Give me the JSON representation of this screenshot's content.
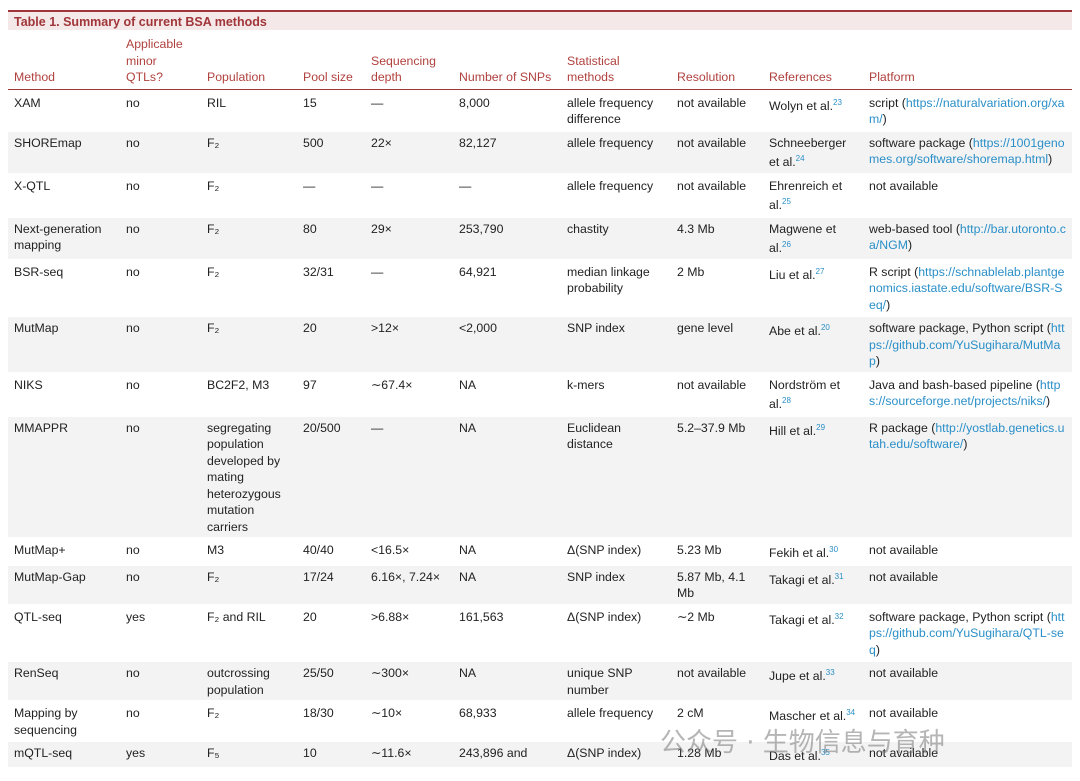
{
  "title": "Table 1. Summary of current BSA methods",
  "header": [
    "Method",
    "Applicable minor QTLs?",
    "Population",
    "Pool size",
    "Sequencing depth",
    "Number of SNPs",
    "Statistical methods",
    "Resolution",
    "References",
    "Platform"
  ],
  "rows": [
    {
      "method": "XAM",
      "minor": "no",
      "population": "RIL",
      "pool": "15",
      "depth": "—",
      "snps": "8,000",
      "stat": "allele frequency difference",
      "resolution": "not available",
      "ref_name": "Wolyn et al.",
      "ref_num": "23",
      "platform": [
        {
          "text": "script ("
        },
        {
          "link": "https://naturalvariation.org/xam/"
        },
        {
          "text": ")"
        }
      ]
    },
    {
      "method": "SHOREmap",
      "minor": "no",
      "population": "F₂",
      "pool": "500",
      "depth": "22×",
      "snps": "82,127",
      "stat": "allele frequency",
      "resolution": "not available",
      "ref_name": "Schneeberger et al.",
      "ref_num": "24",
      "platform": [
        {
          "text": "software package ("
        },
        {
          "link": "https://1001genomes.org/software/shoremap.html"
        },
        {
          "text": ")"
        }
      ]
    },
    {
      "method": "X-QTL",
      "minor": "no",
      "population": "F₂",
      "pool": "—",
      "depth": "—",
      "snps": "—",
      "stat": "allele frequency",
      "resolution": "not available",
      "ref_name": "Ehrenreich et al.",
      "ref_num": "25",
      "platform": [
        {
          "text": "not available"
        }
      ]
    },
    {
      "method": "Next-generation mapping",
      "minor": "no",
      "population": "F₂",
      "pool": "80",
      "depth": "29×",
      "snps": "253,790",
      "stat": "chastity",
      "resolution": "4.3 Mb",
      "ref_name": "Magwene et al.",
      "ref_num": "26",
      "platform": [
        {
          "text": "web-based tool ("
        },
        {
          "link": "http://bar.utoronto.ca/NGM"
        },
        {
          "text": ")"
        }
      ]
    },
    {
      "method": "BSR-seq",
      "minor": "no",
      "population": "F₂",
      "pool": "32/31",
      "depth": "—",
      "snps": "64,921",
      "stat": "median linkage probability",
      "resolution": "2 Mb",
      "ref_name": "Liu et al.",
      "ref_num": "27",
      "platform": [
        {
          "text": "R script ("
        },
        {
          "link": "https://schnablelab.plantgenomics.iastate.edu/software/BSR-Seq/"
        },
        {
          "text": ")"
        }
      ]
    },
    {
      "method": "MutMap",
      "minor": "no",
      "population": "F₂",
      "pool": "20",
      "depth": ">12×",
      "snps": "<2,000",
      "stat": "SNP index",
      "resolution": "gene level",
      "ref_name": "Abe et al.",
      "ref_num": "20",
      "platform": [
        {
          "text": "software package, Python script ("
        },
        {
          "link": "https://github.com/YuSugihara/MutMap"
        },
        {
          "text": ")"
        }
      ]
    },
    {
      "method": "NIKS",
      "minor": "no",
      "population": "BC2F2, M3",
      "pool": "97",
      "depth": "∼67.4×",
      "snps": "NA",
      "stat": "k-mers",
      "resolution": "not available",
      "ref_name": "Nordström et al.",
      "ref_num": "28",
      "platform": [
        {
          "text": "Java and bash-based pipeline ("
        },
        {
          "link": "https://sourceforge.net/projects/niks/"
        },
        {
          "text": ")"
        }
      ]
    },
    {
      "method": "MMAPPR",
      "minor": "no",
      "population": "segregating population developed by mating heterozygous mutation carriers",
      "pool": "20/500",
      "depth": "—",
      "snps": "NA",
      "stat": "Euclidean distance",
      "resolution": "5.2–37.9 Mb",
      "ref_name": "Hill et al.",
      "ref_num": "29",
      "platform": [
        {
          "text": "R package ("
        },
        {
          "link": "http://yostlab.genetics.utah.edu/software/"
        },
        {
          "text": ")"
        }
      ]
    },
    {
      "method": "MutMap+",
      "minor": "no",
      "population": "M3",
      "pool": "40/40",
      "depth": "<16.5×",
      "snps": "NA",
      "stat": "Δ(SNP index)",
      "resolution": "5.23 Mb",
      "ref_name": "Fekih et al.",
      "ref_num": "30",
      "platform": [
        {
          "text": "not available"
        }
      ]
    },
    {
      "method": "MutMap-Gap",
      "minor": "no",
      "population": "F₂",
      "pool": "17/24",
      "depth": "6.16×, 7.24×",
      "snps": "NA",
      "stat": "SNP index",
      "resolution": "5.87 Mb, 4.1 Mb",
      "ref_name": "Takagi et al.",
      "ref_num": "31",
      "platform": [
        {
          "text": "not available"
        }
      ]
    },
    {
      "method": "QTL-seq",
      "minor": "yes",
      "population": "F₂ and RIL",
      "pool": "20",
      "depth": ">6.88×",
      "snps": "161,563",
      "stat": "Δ(SNP index)",
      "resolution": "∼2 Mb",
      "ref_name": "Takagi et al.",
      "ref_num": "32",
      "platform": [
        {
          "text": "software package, Python script ("
        },
        {
          "link": "https://github.com/YuSugihara/QTL-seq"
        },
        {
          "text": ")"
        }
      ]
    },
    {
      "method": "RenSeq",
      "minor": "no",
      "population": "outcrossing population",
      "pool": "25/50",
      "depth": "∼300×",
      "snps": "NA",
      "stat": "unique SNP number",
      "resolution": "not available",
      "ref_name": "Jupe et al.",
      "ref_num": "33",
      "platform": [
        {
          "text": "not available"
        }
      ]
    },
    {
      "method": "Mapping by sequencing",
      "minor": "no",
      "population": "F₂",
      "pool": "18/30",
      "depth": "∼10×",
      "snps": "68,933",
      "stat": "allele frequency",
      "resolution": "2 cM",
      "ref_name": "Mascher et al.",
      "ref_num": "34",
      "platform": [
        {
          "text": "not available"
        }
      ]
    },
    {
      "method": "mQTL-seq",
      "minor": "yes",
      "population": "F₅",
      "pool": "10",
      "depth": "∼11.6×",
      "snps": "243,896 and",
      "stat": "Δ(SNP index)",
      "resolution": "1.28 Mb",
      "ref_name": "Das et al.",
      "ref_num": "35",
      "platform": [
        {
          "text": "not available"
        }
      ]
    }
  ],
  "watermark": "公众号 · 生物信息与育种"
}
